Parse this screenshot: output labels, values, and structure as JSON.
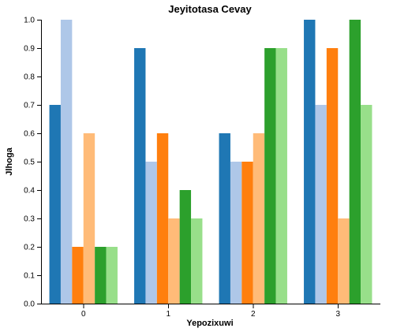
{
  "chart_data": {
    "type": "bar",
    "title": "Jeyitotasa Cevay",
    "xlabel": "Yepozixuwi",
    "ylabel": "Jlhoga",
    "categories": [
      "0",
      "1",
      "2",
      "3"
    ],
    "ylim": [
      0,
      1.0
    ],
    "yticks": [
      "0.0",
      "0.1",
      "0.2",
      "0.3",
      "0.4",
      "0.5",
      "0.6",
      "0.7",
      "0.8",
      "0.9",
      "1.0"
    ],
    "grid": false,
    "legend": "none",
    "colors": [
      "#1f77b4",
      "#aec7e8",
      "#ff7f0e",
      "#ffbb78",
      "#2ca02c",
      "#98df8a"
    ],
    "series": [
      {
        "values": [
          0.7,
          0.9,
          0.6,
          1.0
        ]
      },
      {
        "values": [
          1.0,
          0.5,
          0.5,
          0.7
        ]
      },
      {
        "values": [
          0.2,
          0.6,
          0.5,
          0.9
        ]
      },
      {
        "values": [
          0.6,
          0.3,
          0.6,
          0.3
        ]
      },
      {
        "values": [
          0.2,
          0.4,
          0.9,
          1.0
        ]
      },
      {
        "values": [
          0.2,
          0.3,
          0.9,
          0.7
        ]
      }
    ]
  }
}
